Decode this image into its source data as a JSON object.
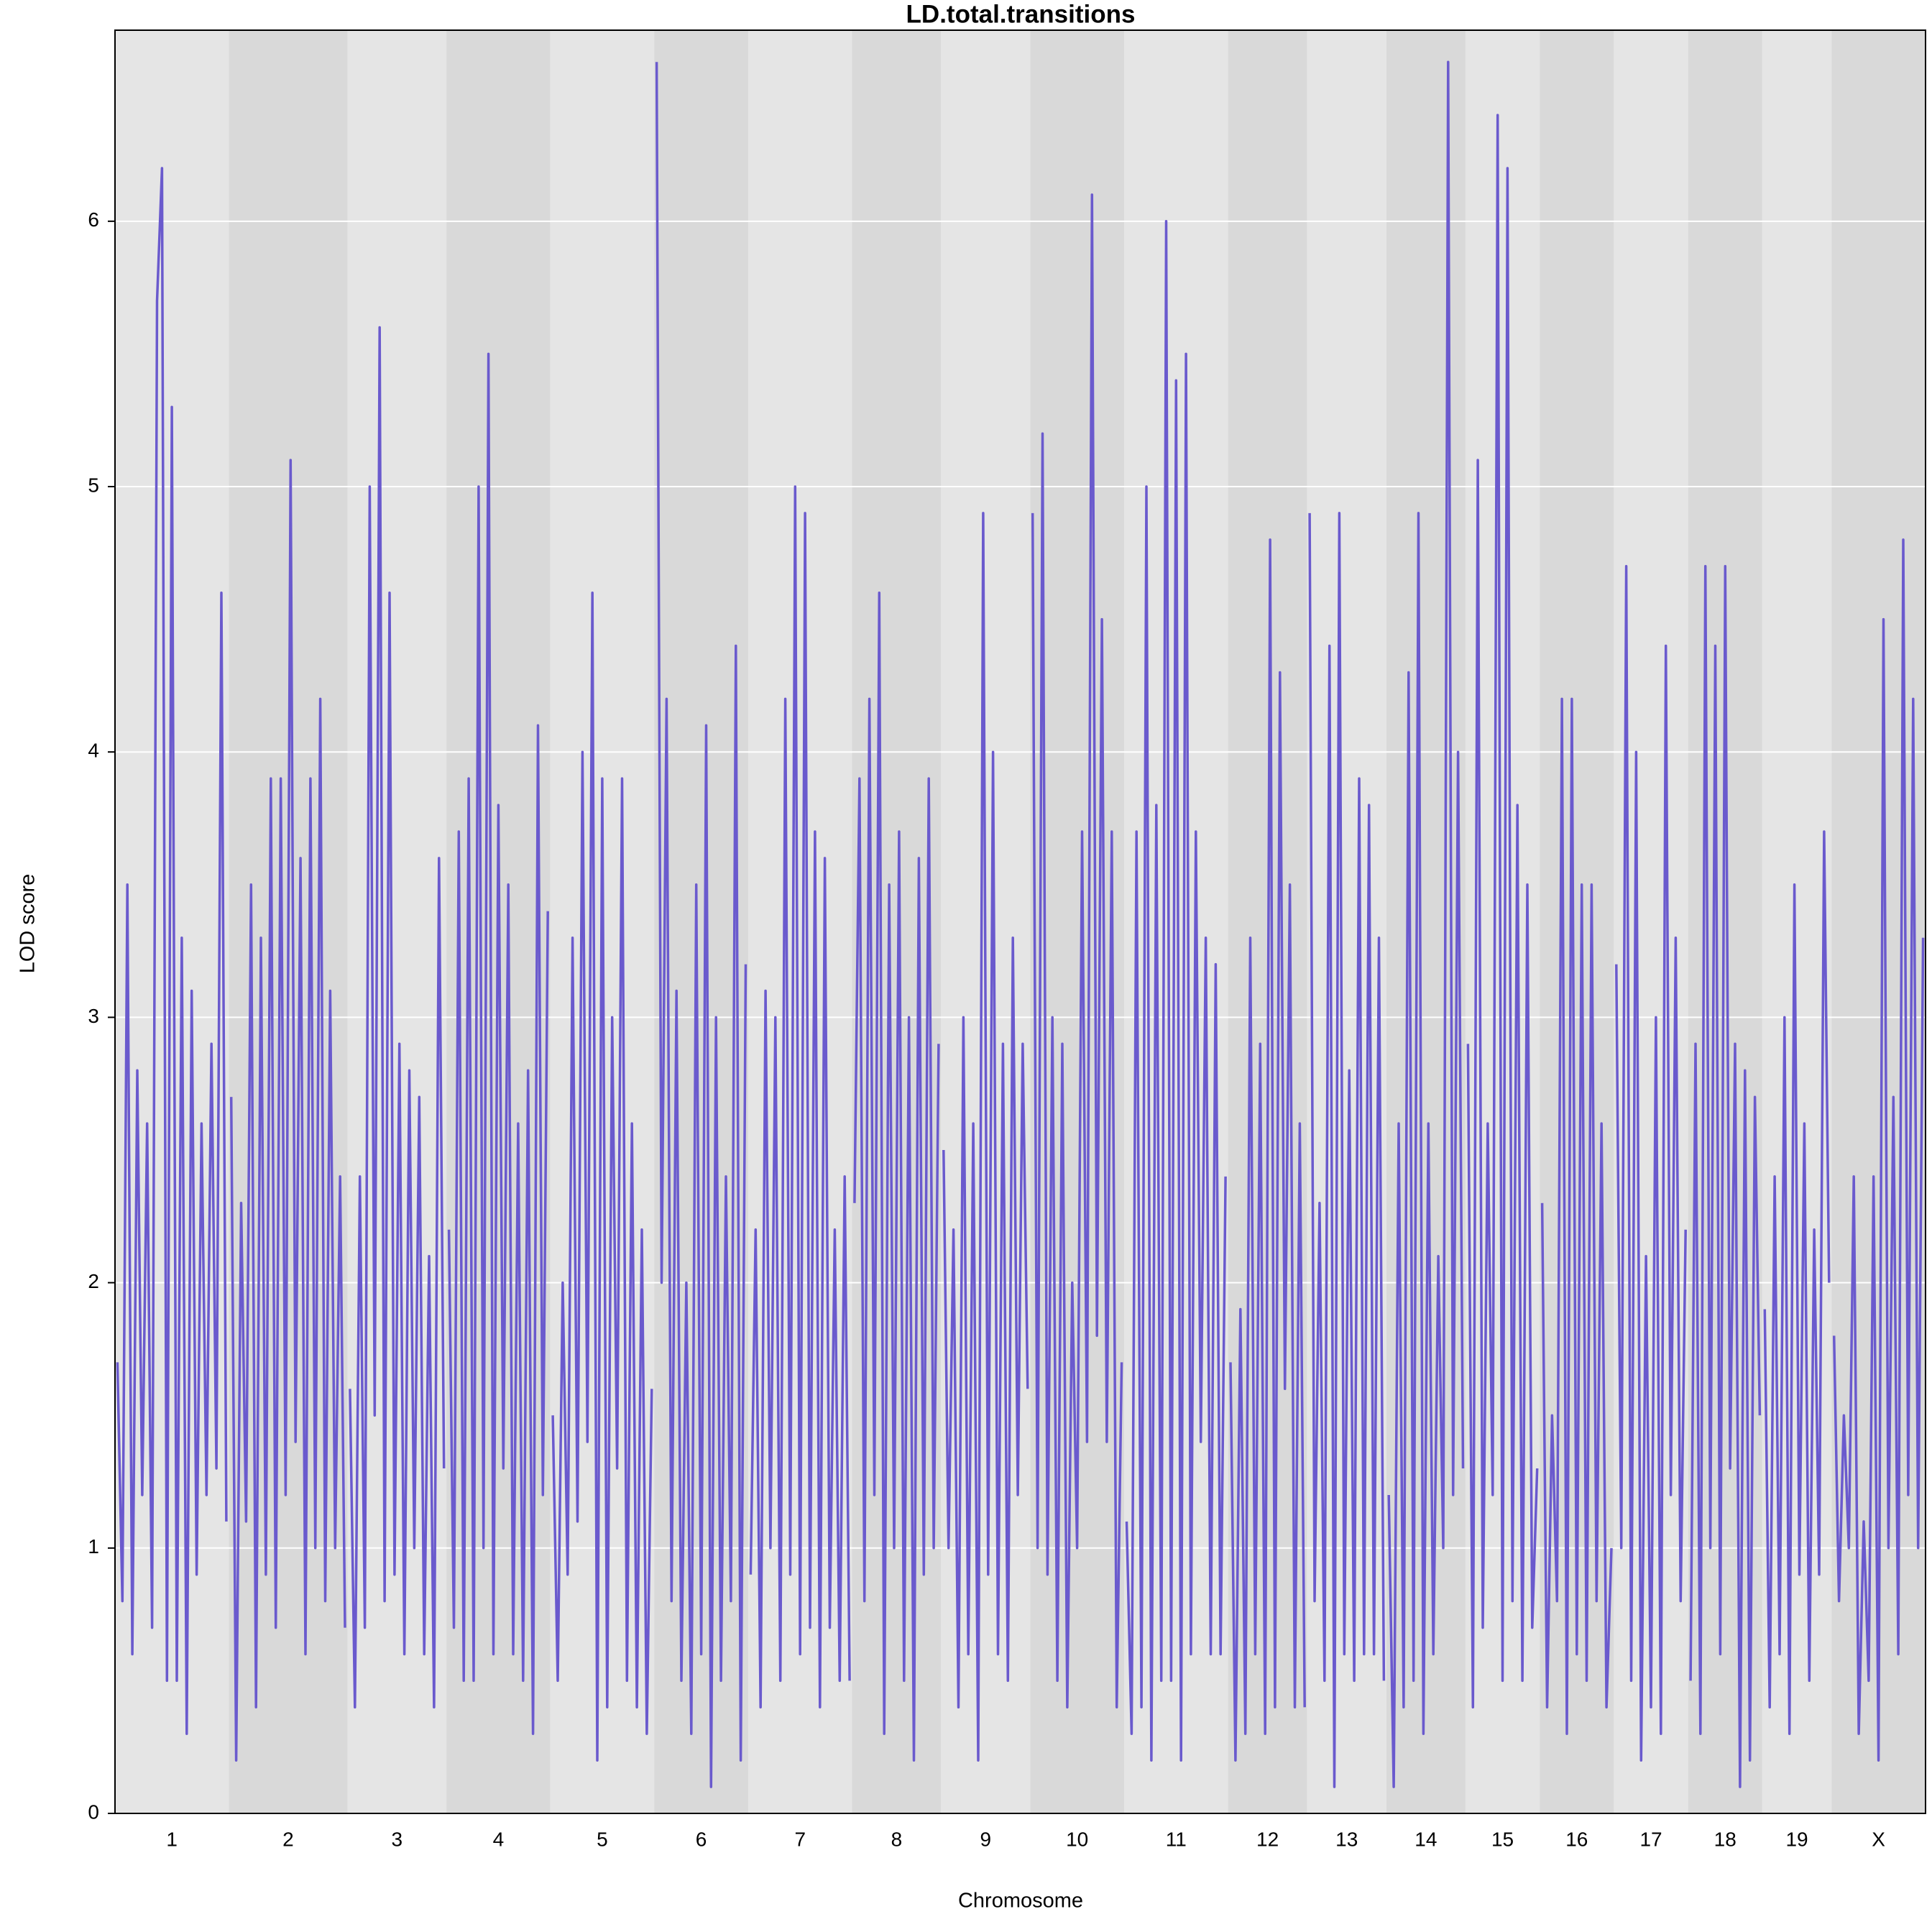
{
  "chart_data": {
    "type": "line",
    "title": "LD.total.transitions",
    "x_label": "Chromosome",
    "y_label": "LOD score",
    "color": "#6a5acd",
    "band_colors": [
      "#e5e5e5",
      "#d9d9d9"
    ],
    "grid": true,
    "ylim": [
      0,
      6.72
    ],
    "yticks": [
      0,
      1,
      2,
      3,
      4,
      5,
      6
    ],
    "categories": [
      "1",
      "2",
      "3",
      "4",
      "5",
      "6",
      "7",
      "8",
      "9",
      "10",
      "11",
      "12",
      "13",
      "14",
      "15",
      "16",
      "17",
      "18",
      "19",
      "X"
    ],
    "segments": [
      [
        1.7,
        0.8,
        3.5,
        0.6,
        2.8,
        1.2,
        2.6,
        0.7,
        5.7,
        6.2,
        0.5,
        5.3,
        0.5,
        3.3,
        0.3,
        3.1,
        0.9,
        2.6,
        1.2,
        2.9,
        1.3,
        4.6,
        1.1
      ],
      [
        2.7,
        0.2,
        2.3,
        1.1,
        3.5,
        0.4,
        3.3,
        0.9,
        3.9,
        0.7,
        3.9,
        1.2,
        5.1,
        1.4,
        3.6,
        0.6,
        3.9,
        1.0,
        4.2,
        0.8,
        3.1,
        1.0,
        2.4,
        0.7
      ],
      [
        1.6,
        0.4,
        2.4,
        0.7,
        5.0,
        1.5,
        5.6,
        0.8,
        4.6,
        0.9,
        2.9,
        0.6,
        2.8,
        1.0,
        2.7,
        0.6,
        2.1,
        0.4,
        3.6,
        1.3
      ],
      [
        2.2,
        0.7,
        3.7,
        0.5,
        3.9,
        0.5,
        5.0,
        1.0,
        5.5,
        0.6,
        3.8,
        1.3,
        3.5,
        0.6,
        2.6,
        0.5,
        2.8,
        0.3,
        4.1,
        1.2,
        3.4
      ],
      [
        1.5,
        0.5,
        2.0,
        0.9,
        3.3,
        1.1,
        4.0,
        1.4,
        4.6,
        0.2,
        3.9,
        0.4,
        3.0,
        1.3,
        3.9,
        0.5,
        2.6,
        0.4,
        2.2,
        0.3,
        1.6
      ],
      [
        6.6,
        2.0,
        4.2,
        0.8,
        3.1,
        0.5,
        2.0,
        0.3,
        3.5,
        0.6,
        4.1,
        0.1,
        3.0,
        0.5,
        2.4,
        0.8,
        4.4,
        0.2,
        3.2
      ],
      [
        0.9,
        2.2,
        0.4,
        3.1,
        1.0,
        3.0,
        0.5,
        4.2,
        0.9,
        5.0,
        0.6,
        4.9,
        0.7,
        3.7,
        0.4,
        3.6,
        0.7,
        2.2,
        0.5,
        2.4,
        0.5
      ],
      [
        2.3,
        3.9,
        0.8,
        4.2,
        1.2,
        4.6,
        0.3,
        3.5,
        1.0,
        3.7,
        0.5,
        3.0,
        0.2,
        3.6,
        0.9,
        3.9,
        1.0,
        2.9
      ],
      [
        2.5,
        1.0,
        2.2,
        0.4,
        3.0,
        0.6,
        2.6,
        0.2,
        4.9,
        0.9,
        4.0,
        0.6,
        2.9,
        0.5,
        3.3,
        1.2,
        2.9,
        1.6
      ],
      [
        4.9,
        1.0,
        5.2,
        0.9,
        3.0,
        0.5,
        2.9,
        0.4,
        2.0,
        1.0,
        3.7,
        1.4,
        6.1,
        1.8,
        4.5,
        1.4,
        3.7,
        0.4,
        1.7
      ],
      [
        1.1,
        0.3,
        3.7,
        0.4,
        5.0,
        0.2,
        3.8,
        0.5,
        6.0,
        0.5,
        5.4,
        0.2,
        5.5,
        0.6,
        3.7,
        1.4,
        3.3,
        0.6,
        3.2,
        0.6,
        2.4
      ],
      [
        1.7,
        0.2,
        1.9,
        0.3,
        3.3,
        0.6,
        2.9,
        0.3,
        4.8,
        0.4,
        4.3,
        1.6,
        3.5,
        0.4,
        2.6,
        0.4
      ],
      [
        4.9,
        0.8,
        2.3,
        0.5,
        4.4,
        0.1,
        4.9,
        0.6,
        2.8,
        0.5,
        3.9,
        0.6,
        3.8,
        0.6,
        3.3,
        0.5
      ],
      [
        1.2,
        0.1,
        2.6,
        0.4,
        4.3,
        0.5,
        4.9,
        0.3,
        2.6,
        0.6,
        2.1,
        1.0,
        6.6,
        1.2,
        4.0,
        1.3
      ],
      [
        2.9,
        0.4,
        5.1,
        0.7,
        2.6,
        1.2,
        6.4,
        0.5,
        6.2,
        0.8,
        3.8,
        0.5,
        3.5,
        0.7,
        1.3
      ],
      [
        2.3,
        0.4,
        1.5,
        0.8,
        4.2,
        0.3,
        4.2,
        0.6,
        3.5,
        0.5,
        3.5,
        0.8,
        2.6,
        0.4,
        1.0
      ],
      [
        3.2,
        1.0,
        4.7,
        0.5,
        4.0,
        0.2,
        2.1,
        0.4,
        3.0,
        0.3,
        4.4,
        1.2,
        3.3,
        0.8,
        2.2
      ],
      [
        0.5,
        2.9,
        0.3,
        4.7,
        1.0,
        4.4,
        0.6,
        4.7,
        1.3,
        2.9,
        0.1,
        2.8,
        0.2,
        2.7,
        1.5
      ],
      [
        1.9,
        0.4,
        2.4,
        0.6,
        3.0,
        0.3,
        3.5,
        0.9,
        2.6,
        0.5,
        2.2,
        0.9,
        3.7,
        2.0
      ],
      [
        1.8,
        0.8,
        1.5,
        1.0,
        2.4,
        0.3,
        1.1,
        0.5,
        2.4,
        0.2,
        4.5,
        1.0,
        2.7,
        0.6,
        4.8,
        1.2,
        4.2,
        1.0,
        3.3
      ]
    ]
  }
}
